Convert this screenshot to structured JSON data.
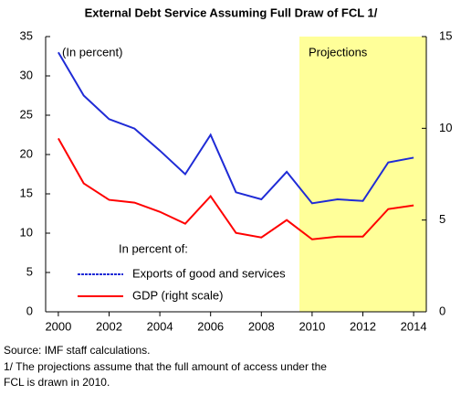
{
  "chart_data": {
    "type": "line",
    "title": "External Debt Service Assuming Full Draw of FCL 1/",
    "subtitle": "(In percent)",
    "x": [
      2000,
      2001,
      2002,
      2003,
      2004,
      2005,
      2006,
      2007,
      2008,
      2009,
      2010,
      2011,
      2012,
      2013,
      2014
    ],
    "xlim": [
      1999.5,
      2014.5
    ],
    "xticks": [
      2000,
      2002,
      2004,
      2006,
      2008,
      2010,
      2012,
      2014
    ],
    "ylim": [
      0,
      35
    ],
    "yticks": [
      0,
      5,
      10,
      15,
      20,
      25,
      30,
      35
    ],
    "y2lim": [
      0,
      15
    ],
    "y2ticks": [
      0,
      5,
      10,
      15
    ],
    "legend_title": "In percent of:",
    "shaded_region": {
      "x": [
        2009.5,
        2014.5
      ],
      "label": "Projections",
      "color": "#ffff99"
    },
    "series": [
      {
        "name": "Exports of good and services",
        "color": "#1f2bd6",
        "values": [
          33.0,
          27.5,
          24.5,
          23.3,
          20.5,
          17.5,
          22.5,
          15.2,
          14.3,
          17.8,
          13.8,
          14.3,
          14.1,
          19.0,
          19.6
        ]
      },
      {
        "name": "GDP (right scale)",
        "color": "#ff0000",
        "axis": "y2",
        "values": [
          9.45,
          7.0,
          6.1,
          5.95,
          5.45,
          4.8,
          6.3,
          4.3,
          4.05,
          5.0,
          3.95,
          4.1,
          4.1,
          5.6,
          5.8
        ]
      }
    ],
    "notes": [
      "Source: IMF staff calculations.",
      "1/ The projections assume that the full amount of access under the",
      "FCL is drawn in 2010."
    ]
  }
}
